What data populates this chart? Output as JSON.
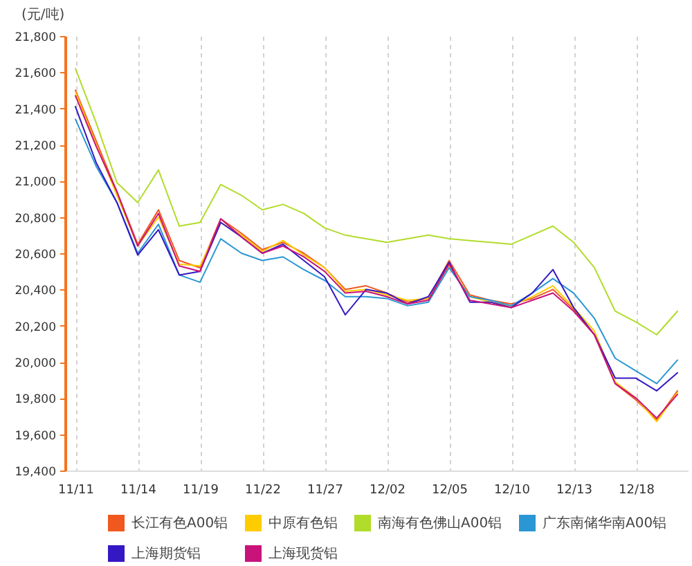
{
  "chart_data": {
    "type": "line",
    "ylabel": "(元/吨)",
    "categories": [
      "11/11",
      null,
      null,
      "11/14",
      null,
      null,
      "11/19",
      null,
      null,
      "11/22",
      null,
      null,
      "11/27",
      null,
      null,
      "12/02",
      null,
      null,
      "12/05",
      null,
      null,
      "12/10",
      null,
      null,
      "12/13",
      null,
      null,
      "12/18",
      null,
      null
    ],
    "series": [
      {
        "name": "长江有色A00铝",
        "color": "#f0581f",
        "values": [
          21500,
          21220,
          20940,
          20650,
          20840,
          20560,
          20520,
          20790,
          20710,
          20620,
          20660,
          20600,
          20520,
          20400,
          20420,
          20380,
          20330,
          20350,
          20560,
          20370,
          20340,
          20320,
          20350,
          20400,
          20290,
          20150,
          19880,
          19790,
          19680,
          19840
        ]
      },
      {
        "name": "中原有色铝",
        "color": "#ffcc00",
        "values": [
          21490,
          21200,
          20920,
          20640,
          20800,
          20540,
          20530,
          20770,
          20700,
          20610,
          20670,
          20590,
          20520,
          20390,
          20400,
          20370,
          20340,
          20350,
          20530,
          20360,
          20330,
          20310,
          20360,
          20420,
          20300,
          20170,
          19890,
          19800,
          19670,
          19830
        ]
      },
      {
        "name": "南海有色佛山A00铝",
        "color": "#b2dc2a",
        "values": [
          21620,
          21320,
          20990,
          20880,
          21060,
          20750,
          20770,
          20980,
          20920,
          20840,
          20870,
          20820,
          20740,
          20700,
          20680,
          20660,
          20680,
          20700,
          20680,
          20670,
          20660,
          20650,
          20700,
          20750,
          20660,
          20520,
          20280,
          20220,
          20150,
          20280
        ]
      },
      {
        "name": "广东南储华南A00铝",
        "color": "#2a96d4",
        "values": [
          21340,
          21080,
          20880,
          20600,
          20760,
          20480,
          20440,
          20680,
          20600,
          20560,
          20580,
          20510,
          20450,
          20360,
          20360,
          20350,
          20310,
          20330,
          20520,
          20360,
          20340,
          20310,
          20380,
          20460,
          20380,
          20240,
          20020,
          19950,
          19880,
          20010
        ]
      },
      {
        "name": "上海期货铝",
        "color": "#3418c4",
        "values": [
          21410,
          21100,
          20880,
          20590,
          20730,
          20480,
          20500,
          20770,
          20690,
          20600,
          20650,
          20560,
          20470,
          20260,
          20400,
          20380,
          20320,
          20360,
          20550,
          20330,
          20330,
          20300,
          20380,
          20510,
          20300,
          20150,
          19910,
          19910,
          19840,
          19940
        ]
      },
      {
        "name": "上海现货铝",
        "color": "#c8137b",
        "values": [
          21470,
          21190,
          20940,
          20640,
          20820,
          20530,
          20500,
          20790,
          20690,
          20600,
          20640,
          20580,
          20500,
          20380,
          20390,
          20360,
          20320,
          20340,
          20540,
          20340,
          20320,
          20300,
          20340,
          20380,
          20280,
          20150,
          19880,
          19800,
          19690,
          19820
        ]
      }
    ],
    "ylim": [
      19400,
      21800
    ],
    "yticks": [
      {
        "value": 19400,
        "label": "19,400"
      },
      {
        "value": 19600,
        "label": "19,600"
      },
      {
        "value": 19800,
        "label": "19,800"
      },
      {
        "value": 20000,
        "label": "20,000"
      },
      {
        "value": 20200,
        "label": "20,200"
      },
      {
        "value": 20400,
        "label": "20,400"
      },
      {
        "value": 20600,
        "label": "20,600"
      },
      {
        "value": 20800,
        "label": "20,800"
      },
      {
        "value": 21000,
        "label": "21,000"
      },
      {
        "value": 21200,
        "label": "21,200"
      },
      {
        "value": 21400,
        "label": "21,400"
      },
      {
        "value": 21600,
        "label": "21,600"
      },
      {
        "value": 21800,
        "label": "21,800"
      }
    ],
    "grid": "x",
    "legend": "bottom"
  }
}
